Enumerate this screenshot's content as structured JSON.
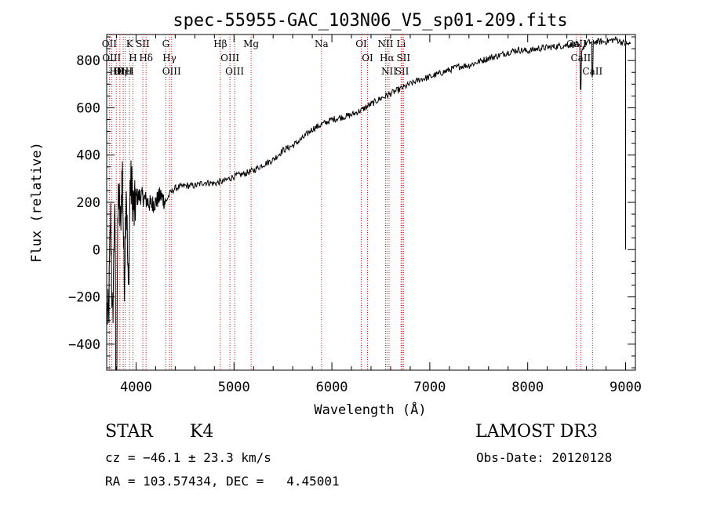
{
  "chart_data": {
    "type": "line",
    "title": "spec-55955-GAC_103N06_V5_sp01-209.fits",
    "xlabel": "Wavelength (Å)",
    "ylabel": "Flux (relative)",
    "xlim": [
      3700,
      9100
    ],
    "ylim": [
      -510,
      910
    ],
    "x_ticks": [
      4000,
      5000,
      6000,
      7000,
      8000,
      9000
    ],
    "x_tick_labels": [
      "4000",
      "5000",
      "6000",
      "7000",
      "8000",
      "9000"
    ],
    "y_ticks": [
      -400,
      -200,
      0,
      200,
      400,
      600,
      800
    ],
    "y_tick_labels": [
      "−400",
      "−200",
      "0",
      "200",
      "400",
      "600",
      "800"
    ],
    "series": [
      {
        "name": "flux",
        "x": [
          3700,
          3720,
          3740,
          3760,
          3780,
          3800,
          3820,
          3840,
          3860,
          3880,
          3900,
          3920,
          3940,
          3960,
          3980,
          4000,
          4050,
          4100,
          4150,
          4200,
          4250,
          4300,
          4350,
          4400,
          4500,
          4600,
          4700,
          4800,
          4900,
          5000,
          5100,
          5200,
          5300,
          5400,
          5500,
          5600,
          5700,
          5800,
          5900,
          6000,
          6100,
          6200,
          6300,
          6400,
          6500,
          6600,
          6700,
          6800,
          6900,
          7000,
          7100,
          7200,
          7300,
          7400,
          7500,
          7600,
          7700,
          7800,
          7900,
          8000,
          8100,
          8200,
          8300,
          8400,
          8500,
          8550,
          8600,
          8700,
          8800,
          8900,
          9000
        ],
        "y": [
          -250,
          -300,
          150,
          -350,
          180,
          -400,
          250,
          100,
          350,
          -150,
          300,
          -200,
          280,
          250,
          150,
          220,
          230,
          210,
          190,
          200,
          230,
          200,
          240,
          260,
          270,
          270,
          285,
          280,
          290,
          310,
          320,
          335,
          360,
          380,
          420,
          440,
          470,
          510,
          530,
          550,
          560,
          570,
          590,
          615,
          640,
          660,
          680,
          700,
          720,
          730,
          745,
          760,
          775,
          780,
          795,
          810,
          820,
          835,
          845,
          840,
          850,
          855,
          860,
          865,
          870,
          845,
          875,
          880,
          880,
          890,
          870
        ]
      }
    ],
    "line_markers": [
      {
        "x": 3727,
        "label": "OII"
      },
      {
        "x": 3750,
        "label": "OIII"
      },
      {
        "x": 3798,
        "label": "Hθ"
      },
      {
        "x": 3835,
        "label": "Hη"
      },
      {
        "x": 3869,
        "label": "OIII"
      },
      {
        "x": 3889,
        "label": "HeI"
      },
      {
        "x": 3934,
        "label": "K"
      },
      {
        "x": 3968,
        "label": "H"
      },
      {
        "x": 4069,
        "label": "SII"
      },
      {
        "x": 4102,
        "label": "Hδ"
      },
      {
        "x": 4304,
        "label": "G"
      },
      {
        "x": 4341,
        "label": "Hγ"
      },
      {
        "x": 4363,
        "label": "OIII"
      },
      {
        "x": 4861,
        "label": "Hβ"
      },
      {
        "x": 4959,
        "label": "OIII"
      },
      {
        "x": 5007,
        "label": "OIII"
      },
      {
        "x": 5175,
        "label": "Mg"
      },
      {
        "x": 5894,
        "label": "Na"
      },
      {
        "x": 6300,
        "label": "OI"
      },
      {
        "x": 6364,
        "label": "OI"
      },
      {
        "x": 6548,
        "label": "NII"
      },
      {
        "x": 6563,
        "label": "Hα"
      },
      {
        "x": 6584,
        "label": "NII"
      },
      {
        "x": 6707,
        "label": "Li"
      },
      {
        "x": 6717,
        "label": "SII"
      },
      {
        "x": 6731,
        "label": "SII"
      },
      {
        "x": 8498,
        "label": "CaII"
      },
      {
        "x": 8542,
        "label": "CaII"
      },
      {
        "x": 8662,
        "label": "CaII"
      }
    ],
    "grid": false,
    "legend": "none"
  },
  "info": {
    "object_class": "STAR",
    "subclass": "K4",
    "survey": "LAMOST DR3",
    "cz": "cz = −46.1 ± 23.3 km/s",
    "obs_date": "Obs-Date: 20120128",
    "coords": "RA = 103.57434, DEC =   4.45001"
  },
  "colors": {
    "background": "#ffffff",
    "foreground": "#000000",
    "marker_line": "#c81e1e"
  }
}
